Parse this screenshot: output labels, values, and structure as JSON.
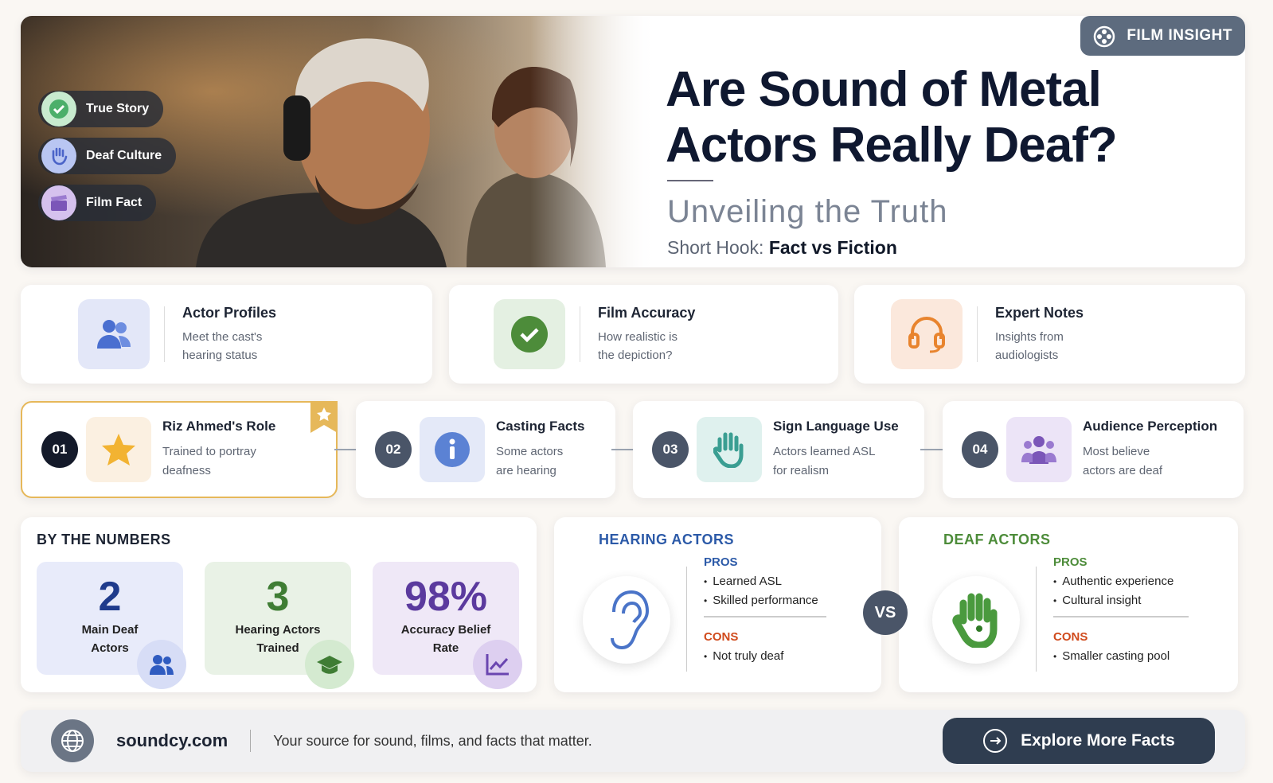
{
  "hero": {
    "badge": "FILM INSIGHT",
    "title_lines": [
      "Are Sound of Metal",
      "Actors Really Deaf?"
    ],
    "subtitle": "Unveiling the Truth",
    "hook_label": "Short Hook:",
    "hook_text": "Fact vs Fiction",
    "tags": [
      "True Story",
      "Deaf Culture",
      "Film Fact"
    ]
  },
  "features": [
    {
      "title": "Actor Profiles",
      "lines": [
        "Meet the cast's",
        "hearing status"
      ]
    },
    {
      "title": "Film Accuracy",
      "lines": [
        "How realistic is",
        "the depiction?"
      ]
    },
    {
      "title": "Expert Notes",
      "lines": [
        "Insights from",
        "audiologists"
      ]
    }
  ],
  "steps": [
    {
      "number": "01",
      "title": "Riz Ahmed's Role",
      "lines": [
        "Trained to portray",
        "deafness"
      ]
    },
    {
      "number": "02",
      "title": "Casting Facts",
      "lines": [
        "Some actors",
        "are hearing"
      ]
    },
    {
      "number": "03",
      "title": "Sign Language Use",
      "lines": [
        "Actors learned ASL",
        "for realism"
      ]
    },
    {
      "number": "04",
      "title": "Audience Perception",
      "lines": [
        "Most believe",
        "actors are deaf"
      ]
    }
  ],
  "numbers": {
    "heading": "BY THE NUMBERS",
    "stats": [
      {
        "value": "2",
        "label_lines": [
          "Main Deaf",
          "Actors"
        ]
      },
      {
        "value": "3",
        "label_lines": [
          "Hearing Actors",
          "Trained"
        ]
      },
      {
        "value": "98%",
        "label_lines": [
          "Accuracy Belief",
          "Rate"
        ]
      }
    ]
  },
  "comparison": {
    "vs": "VS",
    "sides": [
      {
        "heading": "HEARING ACTORS",
        "pros_label": "PROS",
        "pros": [
          "Learned ASL",
          "Skilled performance"
        ],
        "cons_label": "CONS",
        "cons": [
          "Not truly deaf"
        ]
      },
      {
        "heading": "DEAF ACTORS",
        "pros_label": "PROS",
        "pros": [
          "Authentic experience",
          "Cultural insight"
        ],
        "cons_label": "CONS",
        "cons": [
          "Smaller casting pool"
        ]
      }
    ]
  },
  "footer": {
    "site": "soundcy.com",
    "tagline": "Your source for sound, films, and facts that matter.",
    "button": "Explore More Facts"
  }
}
